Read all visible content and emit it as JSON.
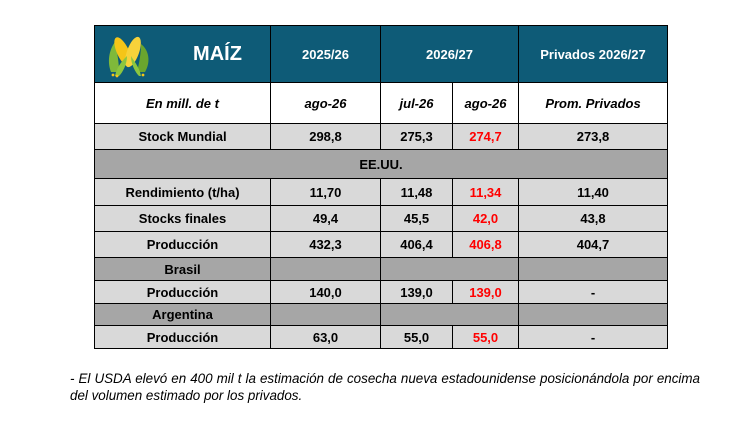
{
  "table": {
    "title": "MAÍZ",
    "col_2025_26": "2025/26",
    "col_2026_27": "2026/27",
    "col_privados": "Privados 2026/27",
    "unit_label": "En mill. de t",
    "sub_ago26_a": "ago-26",
    "sub_jul26": "jul-26",
    "sub_ago26_b": "ago-26",
    "sub_prom": "Prom. Privados",
    "stock_mundial": {
      "label": "Stock Mundial",
      "v1": "298,8",
      "v2": "275,3",
      "v3": "274,7",
      "v4": "273,8"
    },
    "eeuu_label": "EE.UU.",
    "rendimiento": {
      "label": "Rendimiento (t/ha)",
      "v1": "11,70",
      "v2": "11,48",
      "v3": "11,34",
      "v4": "11,40"
    },
    "stocks_finales": {
      "label": "Stocks finales",
      "v1": "49,4",
      "v2": "45,5",
      "v3": "42,0",
      "v4": "43,8"
    },
    "produccion_eeuu": {
      "label": "Producción",
      "v1": "432,3",
      "v2": "406,4",
      "v3": "406,8",
      "v4": "404,7"
    },
    "brasil_label": "Brasil",
    "produccion_brasil": {
      "label": "Producción",
      "v1": "140,0",
      "v2": "139,0",
      "v3": "139,0",
      "v4": "-"
    },
    "argentina_label": "Argentina",
    "produccion_argentina": {
      "label": "Producción",
      "v1": "63,0",
      "v2": "55,0",
      "v3": "55,0",
      "v4": "-"
    }
  },
  "note": "- El USDA elevó en 400 mil t la estimación de cosecha nueva estadounidense posicionándola por encima del volumen estimado por los privados.",
  "colors": {
    "header_bg": "#0e5b77",
    "light_grey": "#d9d9d9",
    "dark_grey": "#a6a6a6",
    "highlight_red": "#ff0000"
  },
  "icons": [
    "corn-icon"
  ]
}
